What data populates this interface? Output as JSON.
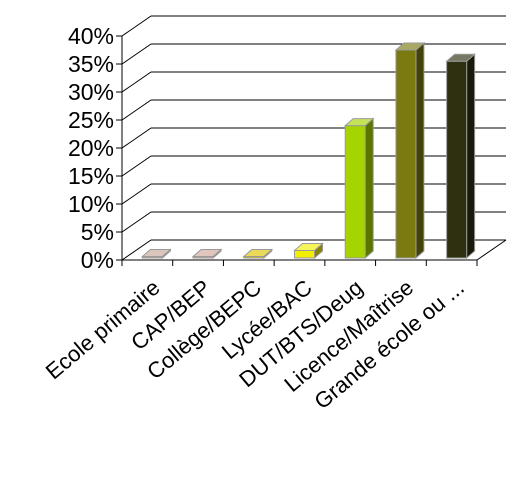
{
  "chart_data": {
    "type": "bar",
    "style": "3d-column",
    "title": "",
    "xlabel": "",
    "ylabel": "",
    "ylim": [
      0,
      40
    ],
    "y_unit": "%",
    "y_ticks": [
      "0%",
      "5%",
      "10%",
      "15%",
      "20%",
      "25%",
      "30%",
      "35%",
      "40%"
    ],
    "grid": true,
    "legend": "none",
    "categories": [
      "Ecole primaire",
      "CAP/BEP",
      "Collège/BEPC",
      "Lycée/BAC",
      "DUT/BTS/Deug",
      "Licence/Maîtrise",
      "Grande école ou ..."
    ],
    "values": [
      0,
      0,
      0,
      1.7,
      24,
      37.5,
      35.5
    ],
    "colors": [
      "#c8a89a",
      "#d0a898",
      "#e0c400",
      "#f2ee00",
      "#a6d400",
      "#7a7a10",
      "#2e3010"
    ]
  }
}
